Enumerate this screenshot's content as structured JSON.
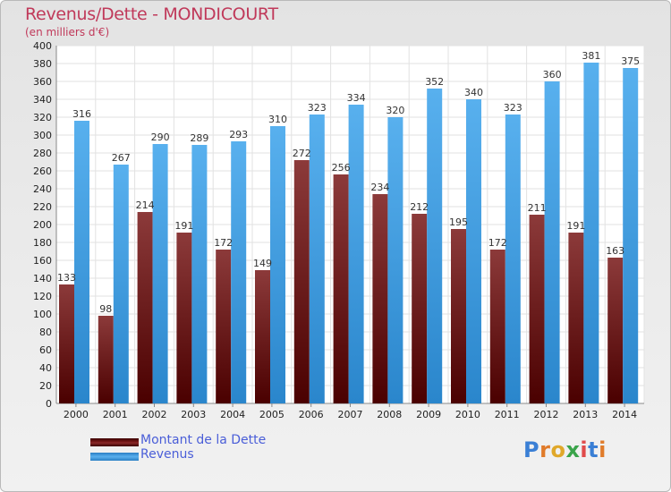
{
  "header": {
    "title": "Revenus/Dette - MONDICOURT",
    "subtitle": "(en milliers d'€)"
  },
  "chart_data": {
    "type": "bar",
    "categories": [
      "2000",
      "2001",
      "2002",
      "2003",
      "2004",
      "2005",
      "2006",
      "2007",
      "2008",
      "2009",
      "2010",
      "2011",
      "2012",
      "2013",
      "2014"
    ],
    "series": [
      {
        "name": "Montant de la Dette",
        "color": "#7a1a1a",
        "values": [
          133,
          98,
          214,
          191,
          172,
          149,
          272,
          256,
          234,
          212,
          195,
          172,
          211,
          191,
          163
        ]
      },
      {
        "name": "Revenus",
        "color": "#4aa3e6",
        "values": [
          316,
          267,
          290,
          289,
          293,
          310,
          323,
          334,
          320,
          352,
          340,
          323,
          360,
          381,
          375
        ]
      }
    ],
    "ylim": [
      0,
      400
    ],
    "ytick_step": 20,
    "grid": true,
    "legend": "bottom-left"
  },
  "logo": {
    "letters": [
      "P",
      "r",
      "o",
      "x",
      "i",
      "t",
      "i"
    ],
    "colors": [
      "#3a7fd5",
      "#e07b2a",
      "#e0a82a",
      "#3aa44a",
      "#e04a4a",
      "#3a7fd5",
      "#e07b2a"
    ]
  }
}
